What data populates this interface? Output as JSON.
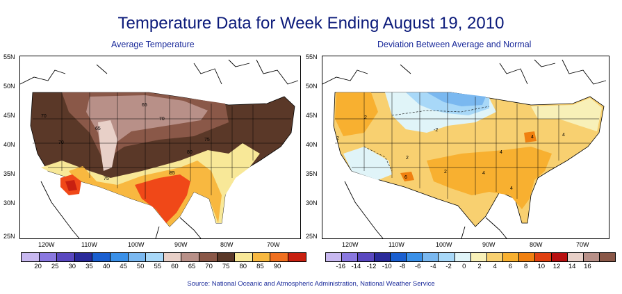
{
  "title": "Temperature Data for Week Ending August 19, 2010",
  "left_map": {
    "subtitle": "Average Temperature",
    "lat_labels": [
      "55N",
      "50N",
      "45N",
      "40N",
      "35N",
      "30N",
      "25N"
    ],
    "lon_labels": [
      "120W",
      "110W",
      "100W",
      "90W",
      "80W",
      "70W"
    ],
    "contour_labels": [
      "70",
      "65",
      "65",
      "70",
      "70",
      "75",
      "80",
      "75",
      "85"
    ],
    "legend": {
      "labels": [
        "20",
        "25",
        "30",
        "35",
        "40",
        "45",
        "50",
        "55",
        "60",
        "65",
        "70",
        "75",
        "80",
        "85",
        "90"
      ],
      "colors": [
        "#c8b8f0",
        "#8a78e0",
        "#5a48c0",
        "#2a2a9a",
        "#1a5fd0",
        "#3a90e8",
        "#7ab8f0",
        "#a8d8f8",
        "#e8d0c8",
        "#b89088",
        "#8a5848",
        "#5a3828",
        "#f8e898",
        "#f8b840",
        "#f07020",
        "#c82010"
      ]
    }
  },
  "right_map": {
    "subtitle": "Deviation Between Average and Normal",
    "lat_labels": [
      "55N",
      "50N",
      "45N",
      "40N",
      "35N",
      "30N",
      "25N"
    ],
    "lon_labels": [
      "120W",
      "110W",
      "100W",
      "90W",
      "80W",
      "70W"
    ],
    "contour_labels": [
      "2",
      "2",
      "-2",
      "2",
      "2",
      "4",
      "4",
      "4",
      "6",
      "4",
      "4"
    ],
    "legend": {
      "labels": [
        "-16",
        "-14",
        "-12",
        "-10",
        "-8",
        "-6",
        "-4",
        "-2",
        "0",
        "2",
        "4",
        "6",
        "8",
        "10",
        "12",
        "14",
        "16"
      ],
      "colors": [
        "#c8b8f0",
        "#8a78e0",
        "#5a48c0",
        "#2a2a9a",
        "#1a5fd0",
        "#3a90e8",
        "#7ab8f0",
        "#a8d8f8",
        "#e0f4f8",
        "#f8f0b8",
        "#f8d070",
        "#f8b030",
        "#f08010",
        "#e04010",
        "#b81010",
        "#e8d0c8",
        "#b89088",
        "#8a5848"
      ]
    }
  },
  "source": "Source:  National Oceanic and Atmospheric Administration, National Weather Service"
}
